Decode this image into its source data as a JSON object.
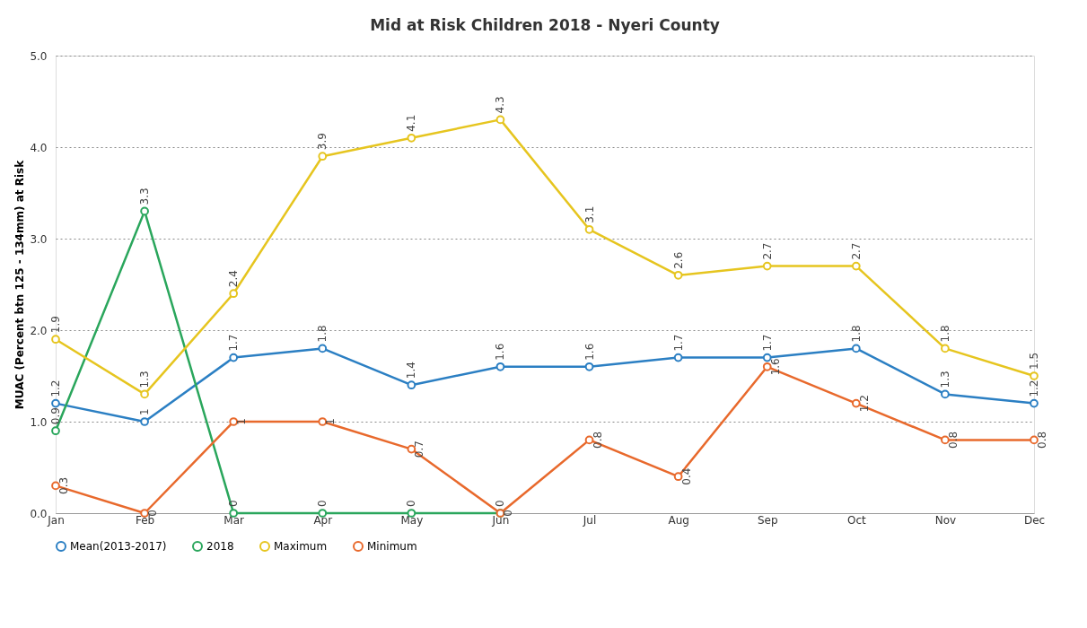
{
  "chart_data": {
    "type": "line",
    "title": "Mid at Risk Children 2018 - Nyeri County",
    "ylabel": "MUAC (Percent btn 125 - 134mm) at Risk",
    "categories": [
      "Jan",
      "Feb",
      "Mar",
      "Apr",
      "May",
      "Jun",
      "Jul",
      "Aug",
      "Sep",
      "Oct",
      "Nov",
      "Dec"
    ],
    "series": [
      {
        "name": "Mean(2013-2017)",
        "color": "#2b7fc3",
        "values": [
          1.2,
          1,
          1.7,
          1.8,
          1.4,
          1.6,
          1.6,
          1.7,
          1.7,
          1.8,
          1.3,
          1.2
        ]
      },
      {
        "name": "2018",
        "color": "#2aa65c",
        "values": [
          0.9,
          3.3,
          0,
          0,
          0,
          0,
          null,
          null,
          null,
          null,
          null,
          null
        ]
      },
      {
        "name": "Maximum",
        "color": "#e6c51f",
        "values": [
          1.9,
          1.3,
          2.4,
          3.9,
          4.1,
          4.3,
          3.1,
          2.6,
          2.7,
          2.7,
          1.8,
          1.5
        ]
      },
      {
        "name": "Minimum",
        "color": "#e8692c",
        "values": [
          0.3,
          0,
          1,
          1,
          0.7,
          0,
          0.8,
          0.4,
          1.6,
          1.2,
          0.8,
          0.8
        ]
      }
    ],
    "ylim": [
      0,
      5
    ],
    "yticks": [
      {
        "value": 0,
        "label": "0.0"
      },
      {
        "value": 1,
        "label": "1.0"
      },
      {
        "value": 2,
        "label": "2.0"
      },
      {
        "value": 3,
        "label": "3.0"
      },
      {
        "value": 4,
        "label": "4.0"
      },
      {
        "value": 5,
        "label": "5.0"
      }
    ],
    "grid": "y",
    "legend": "bottom",
    "marker": "circle",
    "line_style": "solid",
    "data_labels": true
  }
}
